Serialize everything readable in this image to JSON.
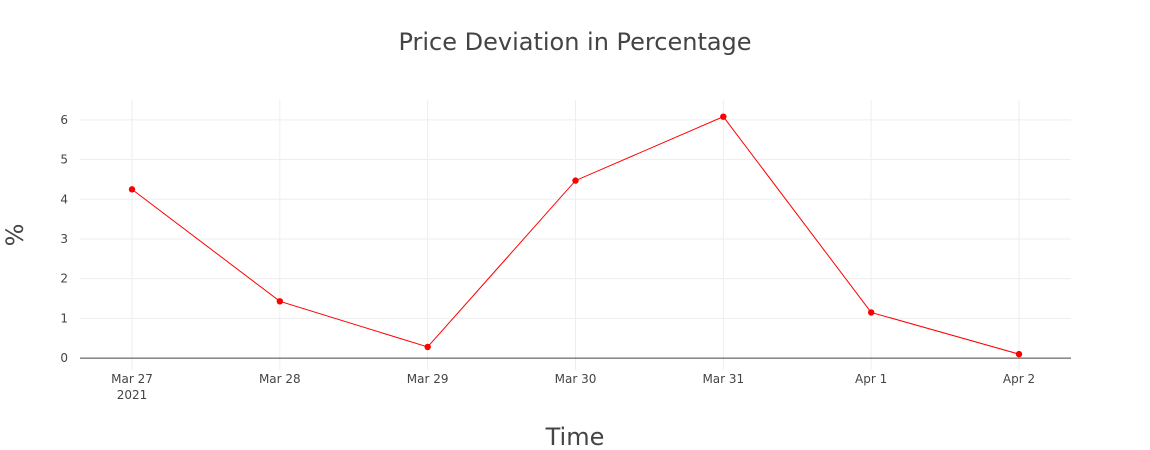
{
  "chart_data": {
    "type": "line",
    "title": "Price Deviation in Percentage",
    "xlabel": "Time",
    "ylabel": "%",
    "x": [
      "Mar 27",
      "Mar 28",
      "Mar 29",
      "Mar 30",
      "Mar 31",
      "Apr 1",
      "Apr 2"
    ],
    "x_year_label": "2021",
    "x_dates": [
      "2021-03-27",
      "2021-03-28",
      "2021-03-29",
      "2021-03-30",
      "2021-03-31",
      "2021-04-01",
      "2021-04-02"
    ],
    "series": [
      {
        "values": [
          4.25,
          1.43,
          0.28,
          4.47,
          6.08,
          1.15,
          0.1
        ],
        "color": "#ff0000"
      }
    ],
    "yticks": [
      0,
      1,
      2,
      3,
      4,
      5,
      6
    ],
    "ylim": [
      -0.3,
      6.5
    ],
    "grid": true,
    "legend": "none"
  }
}
